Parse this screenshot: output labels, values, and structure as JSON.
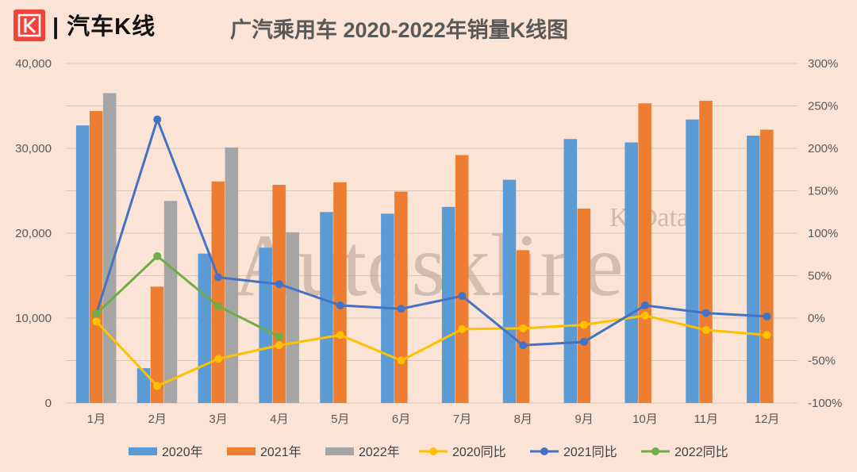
{
  "header": {
    "brand": "| 汽车K线",
    "title": "广汽乘用车 2020-2022年销量K线图"
  },
  "watermark": {
    "main": "Autoskline",
    "sub": "K·Data"
  },
  "colors": {
    "s2020": "#5b9bd5",
    "s2021": "#ed7d31",
    "s2022": "#a5a5a5",
    "y2020": "#ffc000",
    "y2021": "#4472c4",
    "y2022": "#70ad47",
    "logo": "#f2433b"
  },
  "chart_data": {
    "type": "bar+line",
    "title": "广汽乘用车 2020-2022年销量K线图",
    "categories": [
      "1月",
      "2月",
      "3月",
      "4月",
      "5月",
      "6月",
      "7月",
      "8月",
      "9月",
      "10月",
      "11月",
      "12月"
    ],
    "y_left": {
      "min": 0,
      "max": 40000,
      "step": 10000,
      "tick_labels": [
        "0",
        "10,000",
        "20,000",
        "30,000",
        "40,000"
      ]
    },
    "y_right": {
      "min": -100,
      "max": 300,
      "step": 50,
      "tick_labels": [
        "-100%",
        "-50%",
        "0%",
        "50%",
        "100%",
        "150%",
        "200%",
        "250%",
        "300%"
      ]
    },
    "bar_series": [
      {
        "name": "2020年",
        "color": "#5b9bd5",
        "values": [
          32700,
          4100,
          17600,
          18300,
          22500,
          22300,
          23100,
          26300,
          31100,
          30700,
          33400,
          31500
        ]
      },
      {
        "name": "2021年",
        "color": "#ed7d31",
        "values": [
          34400,
          13700,
          26100,
          25700,
          26000,
          24900,
          29200,
          18000,
          22900,
          35300,
          35600,
          32200
        ]
      },
      {
        "name": "2022年",
        "color": "#a5a5a5",
        "values": [
          36500,
          23800,
          30100,
          20100,
          null,
          null,
          null,
          null,
          null,
          null,
          null,
          null
        ]
      }
    ],
    "line_series": [
      {
        "name": "2020同比",
        "color": "#ffc000",
        "values": [
          -4,
          -80,
          -48,
          -32,
          -20,
          -50,
          -13,
          -12,
          -8,
          3,
          -14,
          -20
        ]
      },
      {
        "name": "2021同比",
        "color": "#4472c4",
        "values": [
          5,
          234,
          48,
          40,
          15,
          11,
          26,
          -32,
          -28,
          15,
          6,
          2
        ]
      },
      {
        "name": "2022同比",
        "color": "#70ad47",
        "values": [
          5,
          73,
          14,
          -22,
          null,
          null,
          null,
          null,
          null,
          null,
          null,
          null
        ]
      }
    ],
    "legend": [
      "2020年",
      "2021年",
      "2022年",
      "2020同比",
      "2021同比",
      "2022同比"
    ],
    "legend_position": "bottom",
    "grid": true
  }
}
